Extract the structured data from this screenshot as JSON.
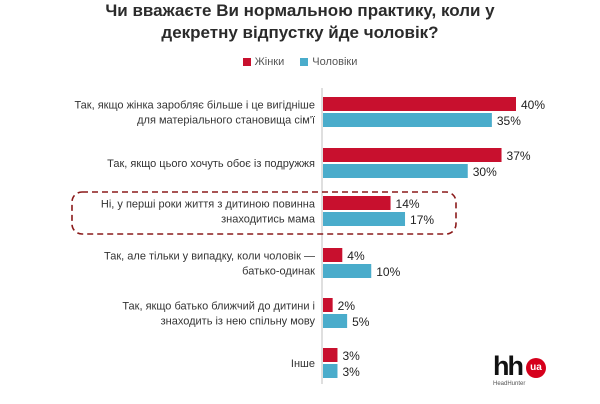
{
  "title_lines": [
    "Чи вважаєте Ви нормальною практику, коли у",
    "декретну відпустку йде чоловік?"
  ],
  "legend": [
    {
      "label": "Жінки",
      "color": "#c8102e"
    },
    {
      "label": "Чоловіки",
      "color": "#4aaccb"
    }
  ],
  "logo": {
    "mark": "hh",
    "badge": "ua",
    "sub": "HeadHunter"
  },
  "chart_data": {
    "type": "bar",
    "orientation": "horizontal",
    "categories": [
      [
        "Так, якщо жінка заробляє більше і це вигідніше",
        "для матеріального становища сім'ї"
      ],
      [
        "Так, якщо цього хочуть обоє із подружжя"
      ],
      [
        "Ні, у перші роки життя з дитиною повинна",
        "знаходитись мама"
      ],
      [
        "Так, але тільки у випадку, коли чоловік —",
        "батько-одинак"
      ],
      [
        "Так, якщо батько ближчий до дитини і",
        "знаходить із нею спільну мову"
      ],
      [
        "Інше"
      ]
    ],
    "series": [
      {
        "name": "Жінки",
        "color": "#c8102e",
        "values": [
          40,
          37,
          14,
          4,
          2,
          3
        ]
      },
      {
        "name": "Чоловіки",
        "color": "#4aaccb",
        "values": [
          35,
          30,
          17,
          10,
          5,
          3
        ]
      }
    ],
    "value_suffix": "%",
    "xlim": [
      0,
      40
    ],
    "highlighted_category_index": 2,
    "highlight_color": "#8b1a1a"
  }
}
